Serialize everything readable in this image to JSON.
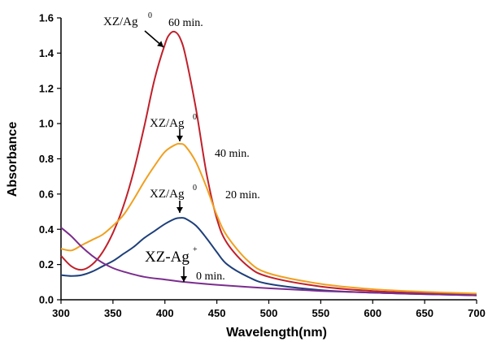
{
  "chart_data": {
    "type": "line",
    "xlabel": "Wavelength(nm)",
    "ylabel": "Absorbance",
    "xlim": [
      300,
      700
    ],
    "ylim": [
      0,
      1.6
    ],
    "xticks": [
      300,
      350,
      400,
      450,
      500,
      550,
      600,
      650,
      700
    ],
    "yticks": [
      0.0,
      0.2,
      0.4,
      0.6,
      0.8,
      1.0,
      1.2,
      1.4,
      1.6
    ],
    "grid": false,
    "series": [
      {
        "color": "#c0202a",
        "x": [
          300,
          310,
          320,
          330,
          340,
          350,
          360,
          370,
          380,
          390,
          400,
          405,
          410,
          415,
          420,
          430,
          440,
          450,
          460,
          480,
          500,
          550,
          600,
          650,
          700
        ],
        "y": [
          0.25,
          0.19,
          0.17,
          0.2,
          0.27,
          0.38,
          0.53,
          0.73,
          0.98,
          1.25,
          1.45,
          1.51,
          1.52,
          1.48,
          1.38,
          1.08,
          0.72,
          0.46,
          0.32,
          0.19,
          0.13,
          0.075,
          0.05,
          0.038,
          0.03
        ]
      },
      {
        "color": "#f0a020",
        "x": [
          300,
          310,
          320,
          330,
          340,
          350,
          360,
          370,
          380,
          390,
          400,
          410,
          415,
          420,
          430,
          440,
          450,
          460,
          480,
          500,
          550,
          600,
          650,
          700
        ],
        "y": [
          0.29,
          0.28,
          0.31,
          0.34,
          0.37,
          0.42,
          0.48,
          0.57,
          0.67,
          0.76,
          0.84,
          0.88,
          0.885,
          0.87,
          0.78,
          0.64,
          0.48,
          0.36,
          0.22,
          0.15,
          0.09,
          0.06,
          0.045,
          0.035
        ]
      },
      {
        "color": "#1e3f7a",
        "x": [
          300,
          310,
          320,
          330,
          340,
          350,
          360,
          370,
          380,
          390,
          400,
          410,
          415,
          420,
          430,
          440,
          450,
          460,
          480,
          500,
          550,
          600,
          650,
          700
        ],
        "y": [
          0.14,
          0.135,
          0.14,
          0.16,
          0.19,
          0.22,
          0.26,
          0.3,
          0.35,
          0.39,
          0.43,
          0.46,
          0.465,
          0.46,
          0.42,
          0.35,
          0.27,
          0.2,
          0.13,
          0.09,
          0.055,
          0.04,
          0.032,
          0.025
        ]
      },
      {
        "color": "#7b2d8e",
        "x": [
          300,
          310,
          320,
          330,
          340,
          350,
          360,
          380,
          400,
          420,
          450,
          500,
          550,
          600,
          650,
          700
        ],
        "y": [
          0.41,
          0.36,
          0.3,
          0.25,
          0.21,
          0.18,
          0.16,
          0.13,
          0.115,
          0.1,
          0.085,
          0.065,
          0.05,
          0.04,
          0.032,
          0.025
        ]
      }
    ],
    "annotations": [
      {
        "label": "XZ/Ag",
        "sup": "0",
        "time": "60 min.",
        "x": 410,
        "y": 1.52
      },
      {
        "label": "XZ/Ag",
        "sup": "0",
        "time": "40 min.",
        "x": 415,
        "y": 0.885
      },
      {
        "label": "XZ/Ag",
        "sup": "0",
        "time": "20 min.",
        "x": 415,
        "y": 0.465
      },
      {
        "label": "XZ-Ag",
        "sup": "+",
        "time": "0 min.",
        "x": 420,
        "y": 0.1
      }
    ]
  }
}
